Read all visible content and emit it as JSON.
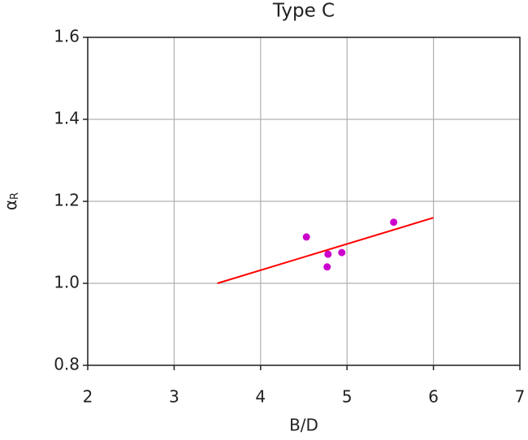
{
  "chart_data": {
    "type": "scatter",
    "title": "Type C",
    "x_label": "B/D",
    "y_label": {
      "symbol": "α",
      "subscript": "R"
    },
    "xlim": [
      2,
      7
    ],
    "xticks": [
      2,
      3,
      4,
      5,
      6,
      7
    ],
    "ylim": [
      0.8,
      1.6
    ],
    "yticks": [
      0.8,
      {
        "value": 1.0,
        "label": "1.0"
      },
      1.2,
      1.4,
      1.6
    ],
    "grid": true,
    "series": [
      {
        "mode": "markers",
        "color": "#cc00cc",
        "x": [
          4.53,
          4.78,
          4.77,
          4.94,
          5.54
        ],
        "values": [
          1.113,
          1.071,
          1.04,
          1.075,
          1.149
        ]
      },
      {
        "mode": "line",
        "color": "#ff0000",
        "x": [
          3.5,
          6.0
        ],
        "values": [
          1.0,
          1.16
        ]
      }
    ]
  }
}
